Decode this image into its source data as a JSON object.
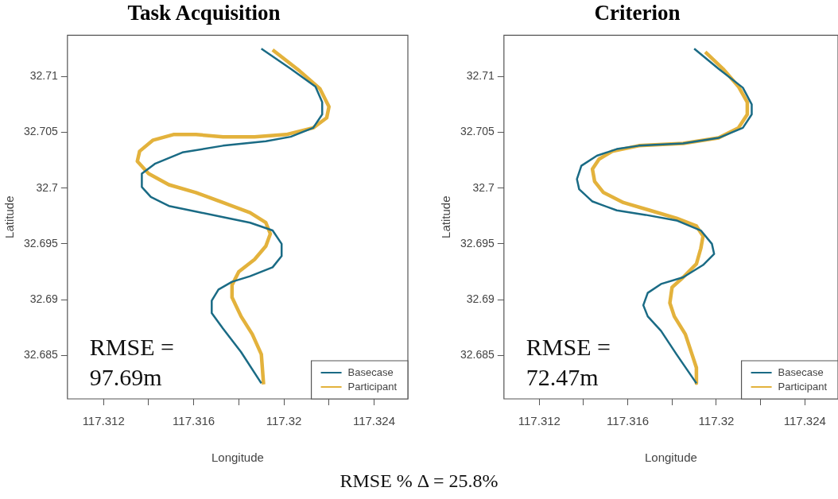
{
  "chart_data": [
    {
      "type": "line",
      "title": "Task Acquisition",
      "xlabel": "Longitude",
      "ylabel": "Latitude",
      "annotations": [
        "RMSE = 97.69m"
      ],
      "xlim": [
        117.3104,
        117.3255
      ],
      "ylim": [
        32.6811,
        32.7137
      ],
      "xticks": [
        117.312,
        {
          "value": 117.314,
          "label": null
        },
        117.316,
        {
          "value": 117.318,
          "label": null
        },
        117.32,
        {
          "value": 117.322,
          "label": null
        },
        117.324
      ],
      "yticks": [
        32.685,
        32.69,
        32.695,
        32.7,
        32.705,
        32.71
      ],
      "grid": false,
      "legend": "bottom right",
      "marker": "none",
      "series": [
        {
          "name": "Basecase",
          "color": "#1a6b85",
          "x": [
            117.319,
            117.3203,
            117.3214,
            117.3217,
            117.3217,
            117.3213,
            117.3203,
            117.3192,
            117.3173,
            117.3155,
            117.3143,
            117.3137,
            117.3137,
            117.3141,
            117.3149,
            117.3161,
            117.3173,
            117.3185,
            117.3195,
            117.3199,
            117.3199,
            117.3195,
            117.3185,
            117.3177,
            117.3171,
            117.3168,
            117.3168,
            117.3173,
            117.3181,
            117.319
          ],
          "values": [
            32.7125,
            32.7107,
            32.7091,
            32.7077,
            32.7066,
            32.7054,
            32.7046,
            32.7042,
            32.7038,
            32.7032,
            32.7022,
            32.7013,
            32.7001,
            32.6992,
            32.6984,
            32.6979,
            32.6974,
            32.6969,
            32.6962,
            32.695,
            32.6939,
            32.6929,
            32.6921,
            32.6916,
            32.6909,
            32.6899,
            32.6888,
            32.6874,
            32.6853,
            32.6825
          ]
        },
        {
          "name": "Participant",
          "color": "#e3b23c",
          "x": [
            117.3195,
            117.3207,
            117.3216,
            117.322,
            117.3219,
            117.3213,
            117.3201,
            117.3187,
            117.3173,
            117.3161,
            117.3151,
            117.3142,
            117.3136,
            117.3135,
            117.314,
            117.3149,
            117.3161,
            117.3173,
            117.3185,
            117.3192,
            117.3194,
            117.3192,
            117.3187,
            117.318,
            117.3177,
            117.3177,
            117.3181,
            117.3186,
            117.319,
            117.3191
          ],
          "values": [
            32.7124,
            32.7105,
            32.7089,
            32.7073,
            32.7063,
            32.7054,
            32.7048,
            32.7046,
            32.7046,
            32.7048,
            32.7048,
            32.7043,
            32.7033,
            32.7024,
            32.7013,
            32.7003,
            32.6996,
            32.6987,
            32.6978,
            32.6969,
            32.6959,
            32.6948,
            32.6936,
            32.6925,
            32.6913,
            32.6902,
            32.6885,
            32.6869,
            32.6851,
            32.6824
          ]
        }
      ]
    },
    {
      "type": "line",
      "title": "Criterion",
      "xlabel": "Longitude",
      "ylabel": "Latitude",
      "annotations": [
        "RMSE = 72.47m",
        "RMSE % Δ = 25.8%"
      ],
      "xlim": [
        117.3104,
        117.3255
      ],
      "ylim": [
        32.6811,
        32.7137
      ],
      "xticks": [
        117.312,
        {
          "value": 117.314,
          "label": null
        },
        117.316,
        {
          "value": 117.318,
          "label": null
        },
        117.32,
        {
          "value": 117.322,
          "label": null
        },
        117.324
      ],
      "yticks": [
        32.685,
        32.69,
        32.695,
        32.7,
        32.705,
        32.71
      ],
      "grid": false,
      "legend": "bottom right",
      "marker": "none",
      "series": [
        {
          "name": "Basecase",
          "color": "#1a6b85",
          "x": [
            117.319,
            117.3201,
            117.3212,
            117.3216,
            117.3216,
            117.3212,
            117.3201,
            117.3185,
            117.3165,
            117.3155,
            117.3146,
            117.3139,
            117.3137,
            117.3138,
            117.3144,
            117.3155,
            117.3168,
            117.3182,
            117.3193,
            117.3198,
            117.3199,
            117.3194,
            117.3185,
            117.3175,
            117.3169,
            117.3167,
            117.3169,
            117.3175,
            117.3182,
            117.3191
          ],
          "values": [
            32.7125,
            32.7107,
            32.709,
            32.7075,
            32.7066,
            32.7054,
            32.7045,
            32.704,
            32.7038,
            32.7035,
            32.7029,
            32.702,
            32.7008,
            32.6999,
            32.6988,
            32.698,
            32.6976,
            32.6971,
            32.6962,
            32.695,
            32.6941,
            32.6931,
            32.692,
            32.6914,
            32.6906,
            32.6895,
            32.6885,
            32.6872,
            32.6851,
            32.6825
          ]
        },
        {
          "name": "Participant",
          "color": "#e3b23c",
          "x": [
            117.3195,
            117.3203,
            117.321,
            117.3214,
            117.3214,
            117.321,
            117.3201,
            117.3185,
            117.3165,
            117.3153,
            117.3147,
            117.3144,
            117.3145,
            117.3149,
            117.3158,
            117.317,
            117.3182,
            117.3191,
            117.3194,
            117.3193,
            117.3191,
            117.3185,
            117.318,
            117.3179,
            117.3181,
            117.3186,
            117.3189,
            117.3191,
            117.3191
          ],
          "values": [
            32.7122,
            32.7107,
            32.7091,
            32.7077,
            32.7066,
            32.7054,
            32.7045,
            32.704,
            32.7038,
            32.7033,
            32.7026,
            32.7017,
            32.7006,
            32.6996,
            32.6987,
            32.698,
            32.6973,
            32.6966,
            32.6957,
            32.6946,
            32.6932,
            32.692,
            32.6911,
            32.6897,
            32.6885,
            32.6869,
            32.6851,
            32.6839,
            32.6825
          ]
        }
      ]
    }
  ]
}
